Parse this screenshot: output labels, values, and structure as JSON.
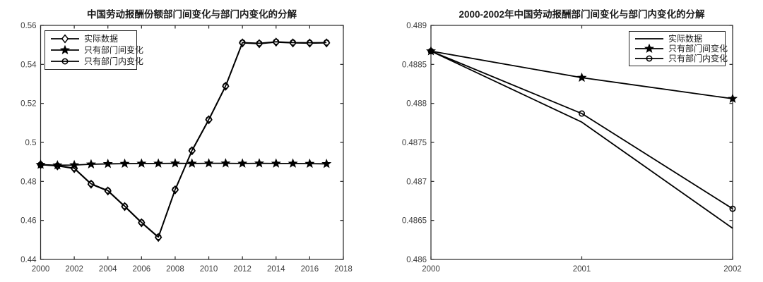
{
  "figure": {
    "background": "#ffffff",
    "line_color": "#000000",
    "axis_color": "#262626",
    "tick_label_color": "#3d3d3d",
    "title_color": "#1a1a1a"
  },
  "chart_data": [
    {
      "type": "line",
      "title": "中国劳动报酬份额部门间变化与部门内变化的分解",
      "xlabel": "",
      "ylabel": "",
      "grid": false,
      "legend_position": "top-left",
      "xlim": [
        2000,
        2018
      ],
      "ylim": [
        0.44,
        0.56
      ],
      "xtick_values": [
        2000,
        2002,
        2004,
        2006,
        2008,
        2010,
        2012,
        2014,
        2016,
        2018
      ],
      "xtick_labels": [
        "2000",
        "2002",
        "2004",
        "2006",
        "2008",
        "2010",
        "2012",
        "2014",
        "2016",
        "2018"
      ],
      "ytick_values": [
        0.44,
        0.46,
        0.48,
        0.5,
        0.52,
        0.54,
        0.56
      ],
      "ytick_labels": [
        "0.44",
        "0.46",
        "0.48",
        "0.5",
        "0.52",
        "0.54",
        "0.56"
      ],
      "x": [
        2000,
        2001,
        2002,
        2003,
        2004,
        2005,
        2006,
        2007,
        2008,
        2009,
        2010,
        2011,
        2012,
        2013,
        2014,
        2015,
        2016,
        2017
      ],
      "series": [
        {
          "name": "实际数据",
          "marker": "diamond",
          "values": [
            0.4886,
            0.488,
            0.4866,
            0.4786,
            0.4751,
            0.4671,
            0.4588,
            0.4513,
            0.4757,
            0.4957,
            0.5116,
            0.5288,
            0.551,
            0.5506,
            0.5514,
            0.551,
            0.5509,
            0.551
          ]
        },
        {
          "name": "只有部门间变化",
          "marker": "star",
          "values": [
            0.4886,
            0.4883,
            0.4884,
            0.4888,
            0.489,
            0.4891,
            0.4892,
            0.4892,
            0.4893,
            0.4892,
            0.4893,
            0.4893,
            0.4892,
            0.4893,
            0.4892,
            0.4892,
            0.4891,
            0.489
          ]
        },
        {
          "name": "只有部门内变化",
          "marker": "circle",
          "values": [
            0.4886,
            0.4881,
            0.4868,
            0.4788,
            0.4753,
            0.4673,
            0.459,
            0.4515,
            0.4759,
            0.4959,
            0.5118,
            0.529,
            0.5512,
            0.5508,
            0.5516,
            0.5512,
            0.5511,
            0.5512
          ]
        }
      ]
    },
    {
      "type": "line",
      "title": "2000-2002年中国劳动报酬部门间变化与部门内变化的分解",
      "xlabel": "",
      "ylabel": "",
      "grid": false,
      "legend_position": "top-right",
      "xlim": [
        2000,
        2002
      ],
      "ylim": [
        0.486,
        0.489
      ],
      "xtick_values": [
        2000,
        2001,
        2002
      ],
      "xtick_labels": [
        "2000",
        "2001",
        "2002"
      ],
      "ytick_values": [
        0.486,
        0.4865,
        0.487,
        0.4875,
        0.488,
        0.4885,
        0.489
      ],
      "ytick_labels": [
        "0.486",
        "0.4865",
        "0.487",
        "0.4875",
        "0.488",
        "0.4885",
        "0.489"
      ],
      "x": [
        2000,
        2001,
        2002
      ],
      "series": [
        {
          "name": "实际数据",
          "marker": "none",
          "values": [
            0.48867,
            0.48776,
            0.4864
          ]
        },
        {
          "name": "只有部门间变化",
          "marker": "star",
          "values": [
            0.48867,
            0.48833,
            0.48806
          ]
        },
        {
          "name": "只有部门内变化",
          "marker": "circle",
          "values": [
            0.48867,
            0.48787,
            0.48665
          ]
        }
      ]
    }
  ]
}
